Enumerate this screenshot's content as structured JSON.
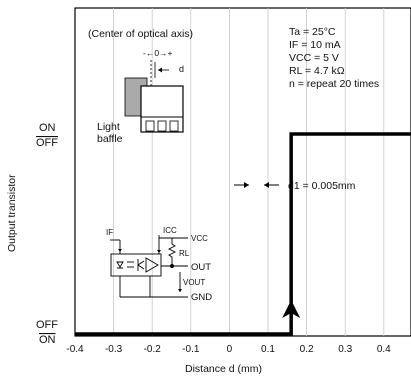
{
  "chart_data": {
    "type": "line",
    "title": "",
    "xlabel": "Distance d (mm)",
    "ylabel": "Output transistor",
    "xlim": [
      -0.4,
      0.6
    ],
    "xticks": [
      "-0.4",
      "-0.3",
      "-0.2",
      "-0.1",
      "0",
      "0.1",
      "0.2",
      "0.3",
      "0.4",
      "0.5",
      "0.6"
    ],
    "grid": true,
    "states": {
      "on": "ON",
      "off": "OFF"
    },
    "series": [
      {
        "x": [
          -0.4,
          0.16,
          0.16,
          0.6
        ],
        "y": [
          "OFF",
          "OFF",
          "ON",
          "ON"
        ]
      }
    ],
    "conditions": [
      "Ta = 25°C",
      "IF = 10 mA",
      "VCC = 5 V",
      "RL = 4.7 kΩ",
      "n = repeat 20 times"
    ],
    "annotations": {
      "d1": "d1 = 0.005mm",
      "inset_title": "(Center of optical axis)",
      "inset_dim_top": "-←0→+",
      "inset_d": "d",
      "light_baffle_line1": "Light",
      "light_baffle_line2": "baffle"
    },
    "circuit_labels": {
      "if": "IF",
      "icc": "ICC",
      "vcc": "VCC",
      "rl": "RL",
      "out": "OUT",
      "vout": "VOUT",
      "gnd": "GND"
    }
  }
}
